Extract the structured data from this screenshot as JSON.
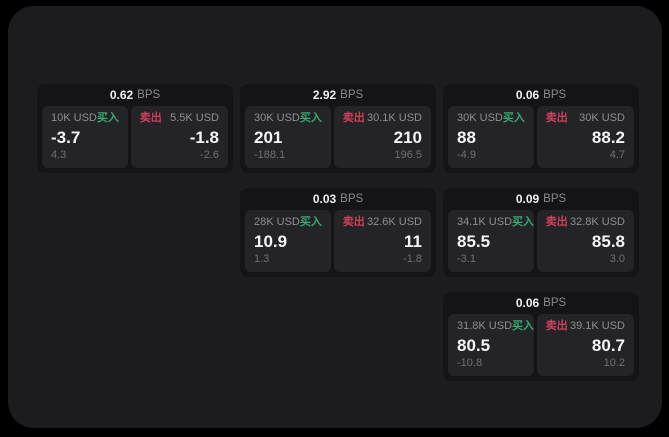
{
  "colors": {
    "surface": "#1c1c1e",
    "card_bg": "#141416",
    "panel_bg": "#242426",
    "buy": "#35a874",
    "sell": "#cf3f5e"
  },
  "labels": {
    "bps_unit": "BPS",
    "buy": "买入",
    "sell": "卖出"
  },
  "cards": [
    {
      "bps": "0.62",
      "buy": {
        "amount": "10K USD",
        "price": "-3.7",
        "delta": "4.3"
      },
      "sell": {
        "amount": "5.5K USD",
        "price": "-1.8",
        "delta": "-2.6"
      }
    },
    {
      "bps": "2.92",
      "buy": {
        "amount": "30K USD",
        "price": "201",
        "delta": "-188.1"
      },
      "sell": {
        "amount": "30.1K USD",
        "price": "210",
        "delta": "196.5"
      }
    },
    {
      "bps": "0.06",
      "buy": {
        "amount": "30K USD",
        "price": "88",
        "delta": "-4.9"
      },
      "sell": {
        "amount": "30K USD",
        "price": "88.2",
        "delta": "4.7"
      }
    },
    {
      "bps": "0.03",
      "buy": {
        "amount": "28K USD",
        "price": "10.9",
        "delta": "1.3"
      },
      "sell": {
        "amount": "32.6K USD",
        "price": "11",
        "delta": "-1.8"
      }
    },
    {
      "bps": "0.09",
      "buy": {
        "amount": "34.1K USD",
        "price": "85.5",
        "delta": "-3.1"
      },
      "sell": {
        "amount": "32.8K USD",
        "price": "85.8",
        "delta": "3.0"
      }
    },
    {
      "bps": "0.06",
      "buy": {
        "amount": "31.8K USD",
        "price": "80.5",
        "delta": "-10.8"
      },
      "sell": {
        "amount": "39.1K USD",
        "price": "80.7",
        "delta": "10.2"
      }
    }
  ]
}
